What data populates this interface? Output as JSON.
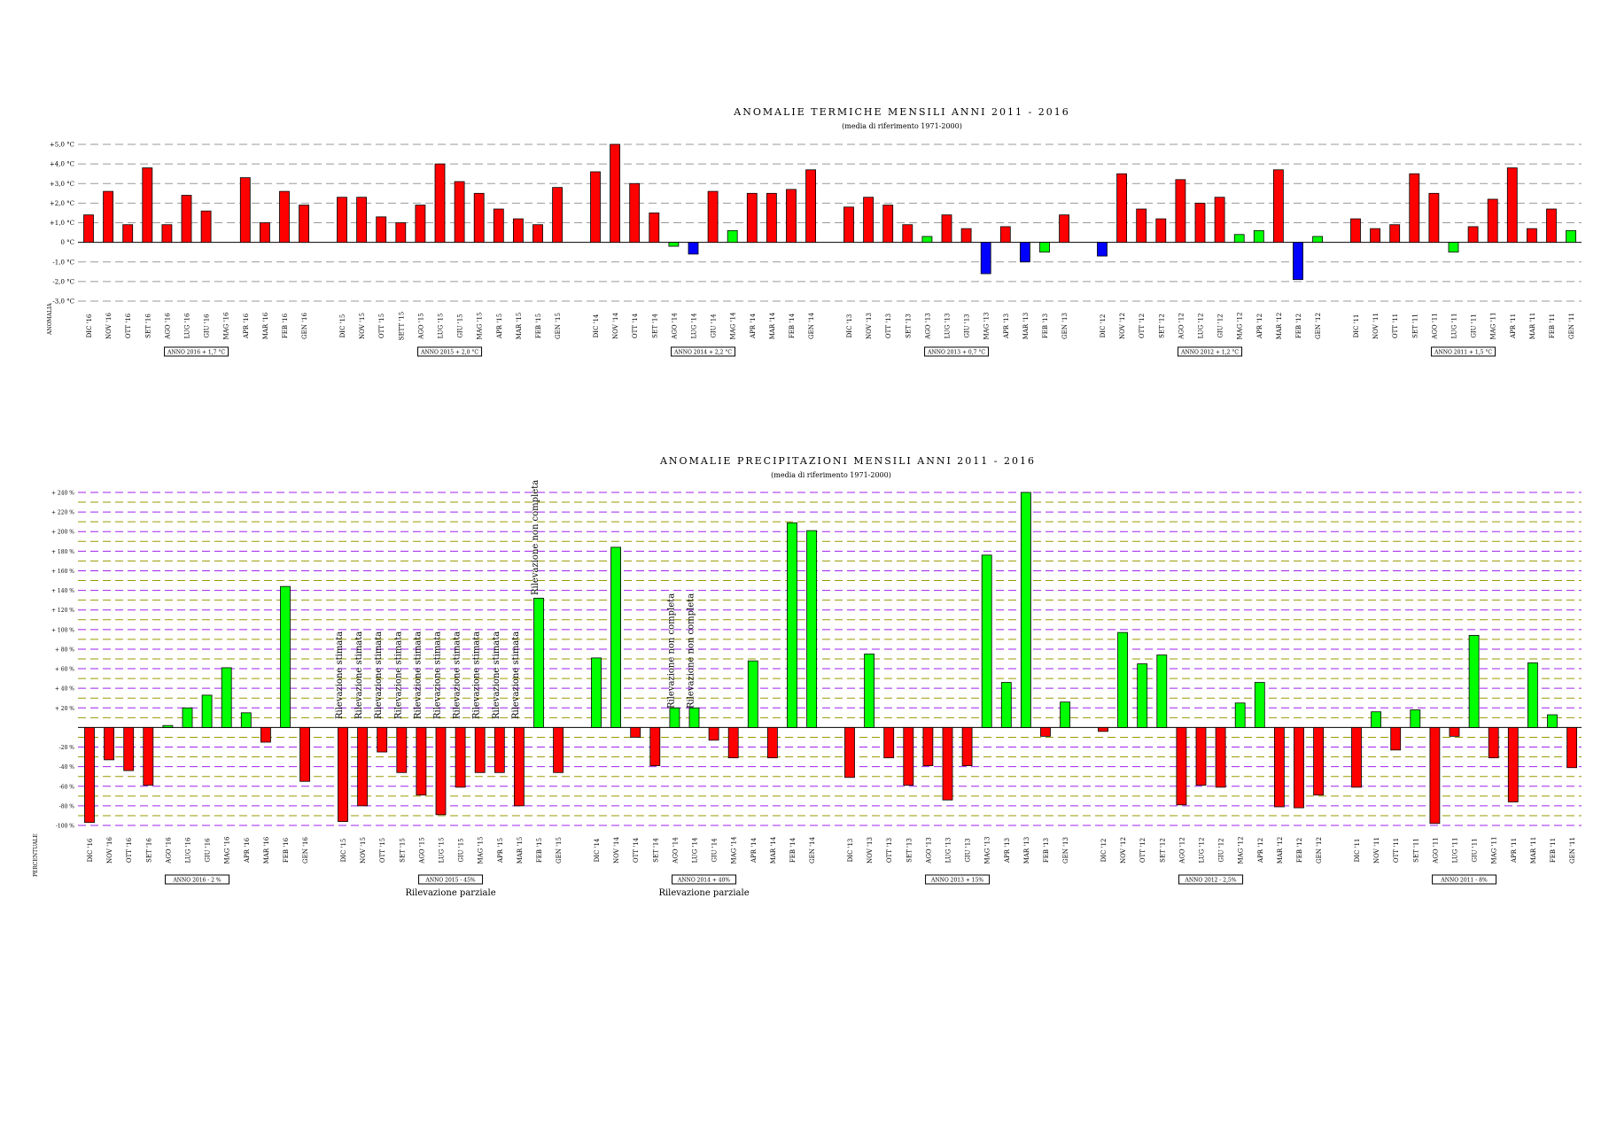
{
  "chart_data": [
    {
      "type": "bar",
      "title": "ANOMALIE TERMICHE MENSILI ANNI 2011 - 2016",
      "subtitle": "(media di riferimento 1971-2000)",
      "ylabel": "ANOMALIA",
      "ylim": [
        -3,
        5
      ],
      "yticks": [
        "+5,0 °C",
        "+4,0 °C",
        "+3,0 °C",
        "+2,0 °C",
        "+1,0 °C",
        "0 °C",
        "-1,0 °C",
        "-2,0 °C",
        "-3,0 °C"
      ],
      "grid": true,
      "colors": {
        "positive": "#ff0000",
        "near_zero": "#00ff00",
        "negative": "#0000ff"
      },
      "groups": [
        {
          "summary": "ANNO 2016 + 1,7 °C",
          "categories": [
            "DIC '16",
            "NOV '16",
            "OTT '16",
            "SET '16",
            "AGO '16",
            "LUG '16",
            "GIU '16",
            "MAG '16",
            "APR '16",
            "MAR '16",
            "FEB '16",
            "GEN '16"
          ],
          "values": [
            1.4,
            2.6,
            0.9,
            3.8,
            0.9,
            2.4,
            1.6,
            null,
            3.3,
            1.0,
            2.6,
            1.9
          ]
        },
        {
          "summary": "ANNO 2015 + 2,0 °C",
          "categories": [
            "DIC '15",
            "NOV '15",
            "OTT '15",
            "SETT '15",
            "AGO '15",
            "LUG '15",
            "GIU '15",
            "MAG '15",
            "APR '15",
            "MAR '15",
            "FEB '15",
            "GEN '15"
          ],
          "values": [
            2.3,
            2.3,
            1.3,
            1.0,
            1.9,
            4.0,
            3.1,
            2.5,
            1.7,
            1.2,
            0.9,
            2.8
          ]
        },
        {
          "summary": "ANNO 2014 + 2,2 °C",
          "categories": [
            "DIC '14",
            "NOV '14",
            "OTT '14",
            "SET '14",
            "AGO '14",
            "LUG '14",
            "GIU '14",
            "MAG '14",
            "APR '14",
            "MAR '14",
            "FEB '14",
            "GEN '14"
          ],
          "values": [
            3.6,
            5.0,
            3.0,
            1.5,
            -0.2,
            -0.6,
            2.6,
            0.6,
            2.5,
            2.5,
            2.7,
            3.7
          ]
        },
        {
          "summary": "ANNO 2013 + 0,7 °C",
          "categories": [
            "DIC '13",
            "NOV '13",
            "OTT '13",
            "SET '13",
            "AGO '13",
            "LUG '13",
            "GIU '13",
            "MAG '13",
            "APR '13",
            "MAR '13",
            "FEB '13",
            "GEN '13"
          ],
          "values": [
            1.8,
            2.3,
            1.9,
            0.9,
            0.3,
            1.4,
            0.7,
            -1.6,
            0.8,
            -1.0,
            -0.5,
            1.4
          ]
        },
        {
          "summary": "ANNO 2012 + 1,2 °C",
          "categories": [
            "DIC '12",
            "NOV '12",
            "OTT '12",
            "SET '12",
            "AGO '12",
            "LUG '12",
            "GIU '12",
            "MAG '12",
            "APR '12",
            "MAR '12",
            "FEB '12",
            "GEN '12"
          ],
          "values": [
            -0.7,
            3.5,
            1.7,
            1.2,
            3.2,
            2.0,
            2.3,
            0.4,
            0.6,
            3.7,
            -1.9,
            0.3
          ]
        },
        {
          "summary": "ANNO 2011 + 1,5 °C",
          "categories": [
            "DIC '11",
            "NOV '11",
            "OTT '11",
            "SET '11",
            "AGO '11",
            "LUG '11",
            "GIU '11",
            "MAG '11",
            "APR '11",
            "MAR '11",
            "FEB '11",
            "GEN '11"
          ],
          "values": [
            1.2,
            0.7,
            0.9,
            3.5,
            2.5,
            -0.5,
            0.8,
            2.2,
            3.8,
            0.7,
            1.7,
            0.6
          ]
        }
      ]
    },
    {
      "type": "bar",
      "title": "ANOMALIE PRECIPITAZIONI MENSILI ANNI 2011 - 2016",
      "subtitle": "(media di riferimento 1971-2000)",
      "ylabel": "PERCENTUALE",
      "ylim": [
        -100,
        240
      ],
      "yticks": [
        "+ 240 %",
        "+ 220 %",
        "+ 200 %",
        "+ 180 %",
        "+ 160 %",
        "+ 140 %",
        "+ 120 %",
        "+ 100 %",
        "+ 80 %",
        "+ 60 %",
        "+ 40 %",
        "+ 20 %",
        "-20 %",
        "-40 %",
        "-60 %",
        "-80 %",
        "-100 %"
      ],
      "grid": true,
      "colors": {
        "positive": "#00ff00",
        "negative": "#ff0000"
      },
      "groups": [
        {
          "summary": "ANNO 2016 - 2 %",
          "categories": [
            "DIC '16",
            "NOV '16",
            "OTT '16",
            "SET '16",
            "AGO '16",
            "LUG '16",
            "GIU '16",
            "MAG '16",
            "APR '16",
            "MAR '16",
            "FEB '16",
            "GEN '16"
          ],
          "values": [
            -97,
            -33,
            -44,
            -59,
            2,
            20,
            33,
            61,
            15,
            -15,
            144,
            -55
          ],
          "annotations": []
        },
        {
          "summary": "ANNO 2015 - 45%",
          "note": "Rilevazione parziale",
          "categories": [
            "DIC '15",
            "NOV '15",
            "OTT '15",
            "SET '15",
            "AGO '15",
            "LUG '15",
            "GIU '15",
            "MAG '15",
            "APR '15",
            "MAR '15",
            "FEB '15",
            "GEN '15"
          ],
          "values": [
            -96,
            -80,
            -25,
            -46,
            -69,
            -89,
            -61,
            -46,
            -46,
            -80,
            132,
            -46
          ],
          "annotations": [
            "Rilevazione stimata",
            "Rilevazione stimata",
            "Rilevazione stimata",
            "Rilevazione stimata",
            "Rilevazione stimata",
            "Rilevazione stimata",
            "Rilevazione stimata",
            "Rilevazione stimata",
            "Rilevazione stimata",
            "Rilevazione stimata",
            "Rilevazione non completa",
            ""
          ]
        },
        {
          "summary": "ANNO 2014 + 40%",
          "note": "Rilevazione parziale",
          "categories": [
            "DIC '14",
            "NOV '14",
            "OTT '14",
            "SET '14",
            "AGO '14",
            "LUG '14",
            "GIU '14",
            "MAG '14",
            "APR '14",
            "MAR '14",
            "FEB '14",
            "GEN '14"
          ],
          "values": [
            71,
            184,
            -10,
            -39,
            20,
            20,
            -13,
            -31,
            68,
            -31,
            209,
            201
          ],
          "annotations": [
            "",
            "",
            "",
            "",
            "Rilevazione non completa",
            "Rilevazione non completa",
            "",
            "",
            "",
            "",
            "",
            ""
          ]
        },
        {
          "summary": "ANNO 2013 + 15%",
          "categories": [
            "DIC '13",
            "NOV '13",
            "OTT '13",
            "SET '13",
            "AGO '13",
            "LUG '13",
            "GIU '13",
            "MAG '13",
            "APR '13",
            "MAR '13",
            "FEB '13",
            "GEN '13"
          ],
          "values": [
            -51,
            75,
            -31,
            -59,
            -39,
            -74,
            -39,
            176,
            46,
            240,
            -9,
            26
          ],
          "annotations": []
        },
        {
          "summary": "ANNO 2012 - 2,5%",
          "categories": [
            "DIC '12",
            "NOV '12",
            "OTT '12",
            "SET '12",
            "AGO '12",
            "LUG '12",
            "GIU '12",
            "MAG '12",
            "APR '12",
            "MAR '12",
            "FEB '12",
            "GEN '12"
          ],
          "values": [
            -4,
            97,
            65,
            74,
            -79,
            -59,
            -61,
            25,
            46,
            -81,
            -82,
            -69
          ],
          "annotations": []
        },
        {
          "summary": "ANNO 2011 - 8%",
          "categories": [
            "DIC '11",
            "NOV '11",
            "OTT '11",
            "SET '11",
            "AGO '11",
            "LUG '11",
            "GIU '11",
            "MAG '11",
            "APR '11",
            "MAR '11",
            "FEB '11",
            "GEN '11"
          ],
          "values": [
            -61,
            16,
            -23,
            18,
            -98,
            -9,
            94,
            -31,
            -76,
            66,
            13,
            -41
          ],
          "annotations": []
        }
      ]
    }
  ]
}
